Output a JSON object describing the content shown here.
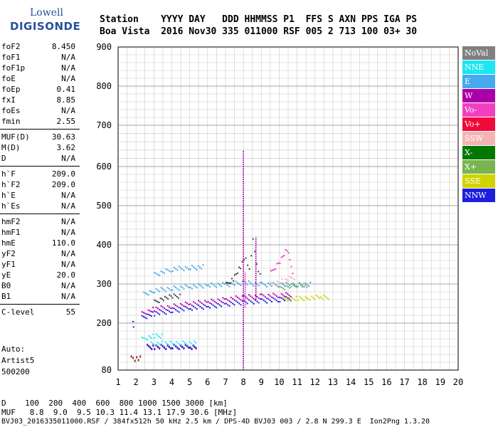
{
  "logo": {
    "line1": "Lowell",
    "line2": "DIGISONDE"
  },
  "header": {
    "row1": "Station    YYYY DAY   DDD HHMMSS P1  FFS S AXN PPS IGA PS",
    "row2": "Boa Vista  2016 Nov30 335 011000 RSF 005 2 713 100 03+ 30"
  },
  "params": [
    [
      {
        "n": "foF2",
        "v": "8.450"
      },
      {
        "n": "foF1",
        "v": "N/A"
      },
      {
        "n": "foF1p",
        "v": "N/A"
      },
      {
        "n": "foE",
        "v": "N/A"
      },
      {
        "n": "foEp",
        "v": "0.41"
      },
      {
        "n": "fxI",
        "v": "8.85"
      },
      {
        "n": "foEs",
        "v": "N/A"
      },
      {
        "n": "fmin",
        "v": "2.55"
      }
    ],
    [
      {
        "n": "MUF(D)",
        "v": "30.63"
      },
      {
        "n": "M(D)",
        "v": "3.62"
      },
      {
        "n": "D",
        "v": "N/A"
      }
    ],
    [
      {
        "n": "h`F",
        "v": "209.0"
      },
      {
        "n": "h`F2",
        "v": "209.0"
      },
      {
        "n": "h`E",
        "v": "N/A"
      },
      {
        "n": "h`Es",
        "v": "N/A"
      }
    ],
    [
      {
        "n": "hmF2",
        "v": "N/A"
      },
      {
        "n": "hmF1",
        "v": "N/A"
      },
      {
        "n": "hmE",
        "v": "110.0"
      },
      {
        "n": "yF2",
        "v": "N/A"
      },
      {
        "n": "yF1",
        "v": "N/A"
      },
      {
        "n": "yE",
        "v": "20.0"
      },
      {
        "n": "B0",
        "v": "N/A"
      },
      {
        "n": "B1",
        "v": "N/A"
      }
    ],
    [
      {
        "n": "C-level",
        "v": "55"
      }
    ]
  ],
  "auto": {
    "line1": "Auto:",
    "line2": "Artist5",
    "line3": "500200"
  },
  "legend": [
    {
      "label": "NoVal",
      "color": "#808080"
    },
    {
      "label": "NNE",
      "color": "#1ee6f0"
    },
    {
      "label": "E",
      "color": "#46aaee"
    },
    {
      "label": "W",
      "color": "#aa00aa"
    },
    {
      "label": "Vo-",
      "color": "#f040c0"
    },
    {
      "label": "Vo+",
      "color": "#f00a3c"
    },
    {
      "label": "SSW",
      "color": "#f4b4b4"
    },
    {
      "label": "X-",
      "color": "#007800"
    },
    {
      "label": "X+",
      "color": "#78b450"
    },
    {
      "label": "SSE",
      "color": "#d2d200"
    },
    {
      "label": "NNW",
      "color": "#1e1edc"
    }
  ],
  "chart_data": {
    "type": "scatter",
    "xlim": [
      1,
      20
    ],
    "ylim": [
      80,
      900
    ],
    "x_ticks": [
      "1",
      "2",
      "3",
      "4",
      "5",
      "6",
      "7",
      "8",
      "9",
      "10",
      "11",
      "12",
      "13",
      "14",
      "15",
      "16",
      "17",
      "18",
      "19",
      "20"
    ],
    "y_ticks": [
      "80",
      "200",
      "300",
      "400",
      "500",
      "600",
      "700",
      "800",
      "900"
    ],
    "grid": true,
    "traces": [
      {
        "color": "#46aaee",
        "x": [
          2.4,
          3.0,
          4.0,
          5.0,
          6.0,
          7.0,
          8.0,
          9.0,
          10.0,
          11.0,
          11.8
        ],
        "y": [
          275,
          285,
          290,
          295,
          298,
          300,
          305,
          300,
          300,
          300,
          300
        ]
      },
      {
        "color": "#46aaee",
        "x": [
          3.0,
          4.0,
          5.0,
          5.8
        ],
        "y": [
          325,
          340,
          343,
          345
        ]
      },
      {
        "color": "#1e1edc",
        "x": [
          2.3,
          3.0,
          4.0,
          5.0,
          6.0,
          7.0,
          8.0,
          9.0,
          10.0,
          10.7
        ],
        "y": [
          215,
          226,
          233,
          240,
          244,
          250,
          255,
          258,
          262,
          265
        ]
      },
      {
        "color": "#aa00aa",
        "x": [
          2.3,
          3.0,
          4.0,
          5.0,
          6.0,
          7.0,
          8.0,
          9.0,
          10.0,
          10.7
        ],
        "y": [
          225,
          238,
          244,
          252,
          256,
          262,
          268,
          270,
          273,
          275
        ]
      },
      {
        "color": "#d2d200",
        "x": [
          10.2,
          10.6,
          11.0,
          11.6,
          12.3,
          12.8
        ],
        "y": [
          263,
          263,
          264,
          266,
          268,
          268
        ]
      },
      {
        "color": "#1ee6f0",
        "x": [
          2.3,
          2.6,
          3.0,
          3.5
        ],
        "y": [
          160,
          165,
          168,
          170
        ]
      },
      {
        "color": "#aa00aa",
        "x": [
          2.6,
          3.0,
          4.0,
          5.0,
          5.4
        ],
        "y": [
          142,
          142,
          142,
          142,
          142
        ]
      },
      {
        "color": "#1e1edc",
        "x": [
          2.6,
          3.0,
          4.0,
          5.0,
          5.4
        ],
        "y": [
          140,
          140,
          140,
          140,
          140
        ]
      },
      {
        "color": "#1ee6f0",
        "x": [
          2.8,
          3.5,
          4.5,
          5.4
        ],
        "y": [
          148,
          150,
          150,
          150
        ]
      },
      {
        "color": "#007800",
        "x": [
          1.7,
          1.9,
          2.1,
          2.3
        ],
        "y": [
          110,
          110,
          110,
          110
        ]
      },
      {
        "color": "#f00a3c",
        "x": [
          1.7,
          1.9,
          2.1,
          2.3
        ],
        "y": [
          112,
          112,
          112,
          112
        ]
      },
      {
        "color": "#1e1edc",
        "x": [
          1.8,
          1.85
        ],
        "y": [
          200,
          180
        ]
      },
      {
        "color": "#404040",
        "x": [
          7.0,
          7.4,
          7.8,
          8.1,
          8.3,
          8.5,
          8.8,
          9.0
        ],
        "y": [
          300,
          315,
          345,
          370,
          340,
          415,
          330,
          325
        ]
      },
      {
        "color": "#404040",
        "x": [
          3.0,
          3.5,
          4.0,
          4.5
        ],
        "y": [
          255,
          265,
          270,
          272
        ]
      },
      {
        "color": "#f040c0",
        "x": [
          9.5,
          10.0,
          10.4,
          10.8
        ],
        "y": [
          330,
          360,
          390,
          320
        ]
      },
      {
        "color": "#f4b4b4",
        "x": [
          9.5,
          10.2,
          10.9
        ],
        "y": [
          300,
          310,
          320
        ]
      },
      {
        "color": "#78b450",
        "x": [
          10.0,
          11.0,
          11.6
        ],
        "y": [
          290,
          300,
          295
        ]
      }
    ],
    "spikes": [
      {
        "color": "#aa00aa",
        "x": 8.0,
        "y_from": 80,
        "y_to": 640
      },
      {
        "color": "#f040c0",
        "x": 8.1,
        "y_from": 240,
        "y_to": 330
      },
      {
        "color": "#aa00aa",
        "x": 8.7,
        "y_from": 260,
        "y_to": 420
      }
    ]
  },
  "bottom": {
    "row1": "D    100  200  400  600  800 1000 1500 3000 [km]",
    "row2": "MUF   8.8  9.0  9.5 10.3 11.4 13.1 17.9 30.6 [MHz]",
    "row3": "BVJ03_2016335011000.RSF / 384fx512h 50 kHz 2.5 km / DPS-4D BVJ03 003 / 2.8 N 299.3 E  Ion2Png 1.3.20"
  }
}
